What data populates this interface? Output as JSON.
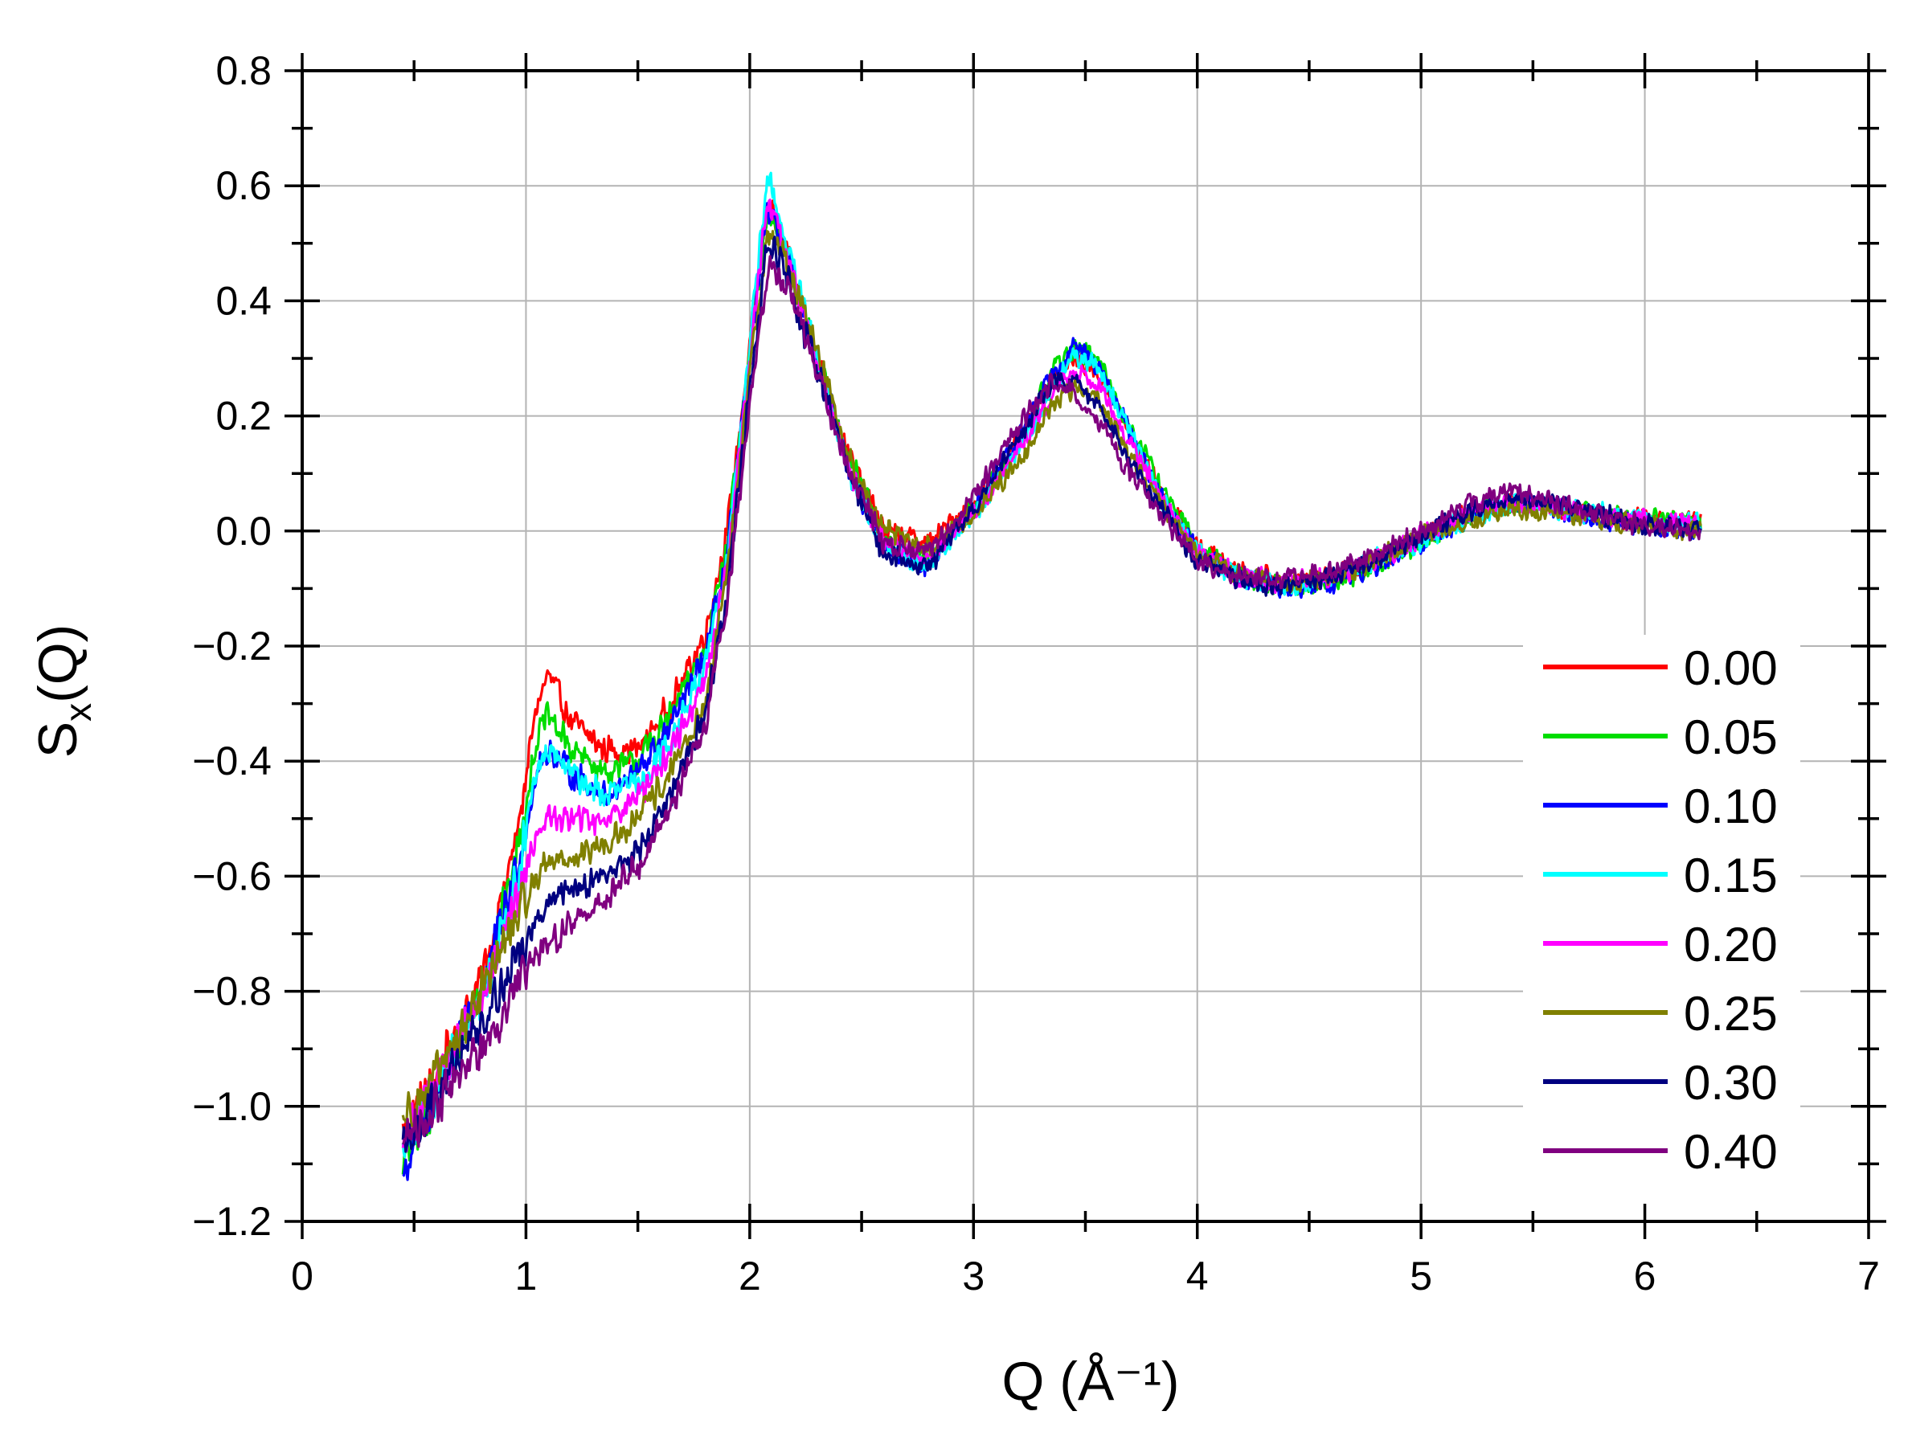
{
  "chart_data": {
    "type": "line",
    "title": "",
    "xlabel": "Q (Å⁻¹)",
    "ylabel": "S",
    "ylabel_subscript": "x",
    "ylabel_suffix": "(Q)",
    "xlim": [
      0,
      7
    ],
    "ylim": [
      -1.2,
      0.8
    ],
    "x_ticks": [
      "0",
      "1",
      "2",
      "3",
      "4",
      "5",
      "6",
      "7"
    ],
    "y_ticks": [
      "−1.2",
      "−1.0",
      "−0.8",
      "−0.6",
      "−0.4",
      "−0.2",
      "0.0",
      "0.2",
      "0.4",
      "0.6",
      "0.8"
    ],
    "grid": true,
    "legend_position": "bottom-right",
    "x": [
      0.45,
      0.6,
      0.8,
      0.95,
      1.05,
      1.1,
      1.2,
      1.35,
      1.5,
      1.65,
      1.8,
      1.9,
      2.0,
      2.08,
      2.15,
      2.3,
      2.45,
      2.6,
      2.8,
      3.0,
      3.2,
      3.35,
      3.45,
      3.55,
      3.7,
      3.85,
      4.0,
      4.2,
      4.4,
      4.6,
      4.8,
      5.0,
      5.2,
      5.4,
      5.6,
      5.8,
      6.0,
      6.25
    ],
    "series": [
      {
        "name": "0.00",
        "color": "#ff0000",
        "values": [
          -1.04,
          -0.95,
          -0.78,
          -0.55,
          -0.3,
          -0.25,
          -0.33,
          -0.38,
          -0.38,
          -0.3,
          -0.18,
          0.0,
          0.32,
          0.58,
          0.5,
          0.3,
          0.12,
          0.0,
          -0.02,
          0.05,
          0.15,
          0.26,
          0.3,
          0.28,
          0.17,
          0.06,
          -0.03,
          -0.07,
          -0.09,
          -0.08,
          -0.05,
          -0.01,
          0.03,
          0.05,
          0.04,
          0.03,
          0.02,
          0.02
        ]
      },
      {
        "name": "0.05",
        "color": "#00dd00",
        "values": [
          -1.1,
          -0.98,
          -0.8,
          -0.58,
          -0.36,
          -0.32,
          -0.38,
          -0.42,
          -0.4,
          -0.32,
          -0.2,
          -0.02,
          0.3,
          0.56,
          0.5,
          0.3,
          0.12,
          -0.02,
          -0.05,
          0.04,
          0.15,
          0.28,
          0.32,
          0.3,
          0.18,
          0.07,
          -0.03,
          -0.08,
          -0.1,
          -0.09,
          -0.06,
          -0.02,
          0.02,
          0.05,
          0.04,
          0.03,
          0.02,
          0.02
        ]
      },
      {
        "name": "0.10",
        "color": "#0000ff",
        "values": [
          -1.12,
          -0.98,
          -0.8,
          -0.6,
          -0.42,
          -0.38,
          -0.42,
          -0.46,
          -0.42,
          -0.34,
          -0.22,
          -0.04,
          0.3,
          0.56,
          0.5,
          0.3,
          0.1,
          -0.03,
          -0.06,
          0.04,
          0.16,
          0.28,
          0.32,
          0.29,
          0.17,
          0.05,
          -0.04,
          -0.08,
          -0.1,
          -0.09,
          -0.06,
          -0.02,
          0.02,
          0.05,
          0.04,
          0.02,
          0.01,
          0.0
        ]
      },
      {
        "name": "0.15",
        "color": "#00ffff",
        "values": [
          -1.08,
          -0.97,
          -0.82,
          -0.62,
          -0.42,
          -0.38,
          -0.42,
          -0.46,
          -0.44,
          -0.36,
          -0.24,
          -0.04,
          0.32,
          0.62,
          0.52,
          0.3,
          0.1,
          -0.03,
          -0.06,
          0.03,
          0.14,
          0.25,
          0.3,
          0.29,
          0.17,
          0.05,
          -0.04,
          -0.08,
          -0.1,
          -0.08,
          -0.05,
          -0.02,
          0.02,
          0.05,
          0.04,
          0.03,
          0.02,
          0.01
        ]
      },
      {
        "name": "0.20",
        "color": "#ff00ff",
        "values": [
          -1.06,
          -0.96,
          -0.82,
          -0.66,
          -0.52,
          -0.5,
          -0.5,
          -0.5,
          -0.46,
          -0.38,
          -0.26,
          -0.06,
          0.3,
          0.58,
          0.5,
          0.3,
          0.1,
          -0.02,
          -0.05,
          0.03,
          0.14,
          0.24,
          0.28,
          0.26,
          0.15,
          0.05,
          -0.04,
          -0.08,
          -0.09,
          -0.08,
          -0.05,
          -0.01,
          0.03,
          0.05,
          0.04,
          0.03,
          0.02,
          0.01
        ]
      },
      {
        "name": "0.25",
        "color": "#808000",
        "values": [
          -1.02,
          -0.95,
          -0.8,
          -0.68,
          -0.6,
          -0.57,
          -0.57,
          -0.55,
          -0.5,
          -0.42,
          -0.3,
          -0.08,
          0.28,
          0.52,
          0.48,
          0.32,
          0.12,
          0.0,
          -0.03,
          0.03,
          0.12,
          0.22,
          0.25,
          0.23,
          0.13,
          0.04,
          -0.04,
          -0.08,
          -0.09,
          -0.08,
          -0.05,
          -0.01,
          0.02,
          0.04,
          0.03,
          0.02,
          0.01,
          0.0
        ]
      },
      {
        "name": "0.30",
        "color": "#000080",
        "values": [
          -1.08,
          -0.98,
          -0.85,
          -0.75,
          -0.68,
          -0.65,
          -0.62,
          -0.6,
          -0.56,
          -0.46,
          -0.32,
          -0.1,
          0.25,
          0.5,
          0.46,
          0.28,
          0.1,
          -0.04,
          -0.06,
          0.04,
          0.16,
          0.26,
          0.26,
          0.22,
          0.12,
          0.03,
          -0.05,
          -0.09,
          -0.1,
          -0.08,
          -0.05,
          -0.01,
          0.03,
          0.06,
          0.05,
          0.03,
          0.01,
          0.0
        ]
      },
      {
        "name": "0.40",
        "color": "#800080",
        "values": [
          -1.06,
          -1.0,
          -0.9,
          -0.8,
          -0.74,
          -0.72,
          -0.68,
          -0.64,
          -0.58,
          -0.48,
          -0.34,
          -0.12,
          0.22,
          0.46,
          0.44,
          0.28,
          0.1,
          -0.02,
          -0.04,
          0.06,
          0.18,
          0.26,
          0.24,
          0.2,
          0.1,
          0.02,
          -0.05,
          -0.08,
          -0.08,
          -0.07,
          -0.04,
          0.0,
          0.04,
          0.07,
          0.05,
          0.03,
          0.01,
          0.0
        ]
      }
    ]
  }
}
